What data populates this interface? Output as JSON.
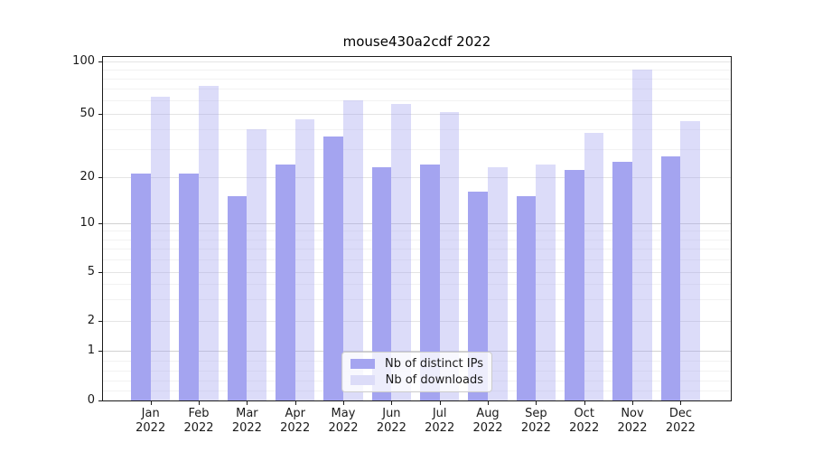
{
  "chart_data": {
    "type": "bar",
    "title": "mouse430a2cdf 2022",
    "categories": [
      "Jan",
      "Feb",
      "Mar",
      "Apr",
      "May",
      "Jun",
      "Jul",
      "Aug",
      "Sep",
      "Oct",
      "Nov",
      "Dec"
    ],
    "x_tick_line2": "2022",
    "series": [
      {
        "name": "Nb of distinct IPs",
        "color": "#a4a4f0",
        "values": [
          21,
          21,
          15,
          24,
          36,
          23,
          24,
          16,
          15,
          22,
          25,
          27
        ]
      },
      {
        "name": "Nb of downloads",
        "color": "#dcdcf8",
        "values": [
          63,
          72,
          40,
          46,
          60,
          57,
          51,
          23,
          24,
          38,
          90,
          45
        ]
      }
    ],
    "y_axis": {
      "scale": "symlog",
      "ticks": [
        0,
        1,
        2,
        5,
        10,
        20,
        50,
        100
      ],
      "tick_labels": [
        "0",
        "1",
        "2",
        "5",
        "10",
        "20",
        "50",
        "100"
      ],
      "minor_ticks": [
        0.2,
        0.4,
        0.6,
        0.8,
        3,
        4,
        6,
        7,
        8,
        9,
        30,
        40,
        60,
        70,
        80,
        90
      ],
      "emphasized_gridlines": [
        1,
        10
      ],
      "range": [
        0,
        110
      ],
      "grid": true
    },
    "legend": {
      "position": "lower center",
      "entries": [
        "Nb of distinct IPs",
        "Nb of downloads"
      ]
    },
    "colors": {
      "bar_distinct_ips": "#a4a4f0",
      "bar_downloads": "#dcdcf8",
      "axis": "#1a1a1a",
      "grid_major": "#e4e4e4",
      "grid_minor": "#f2f2f2",
      "background": "#ffffff"
    }
  }
}
